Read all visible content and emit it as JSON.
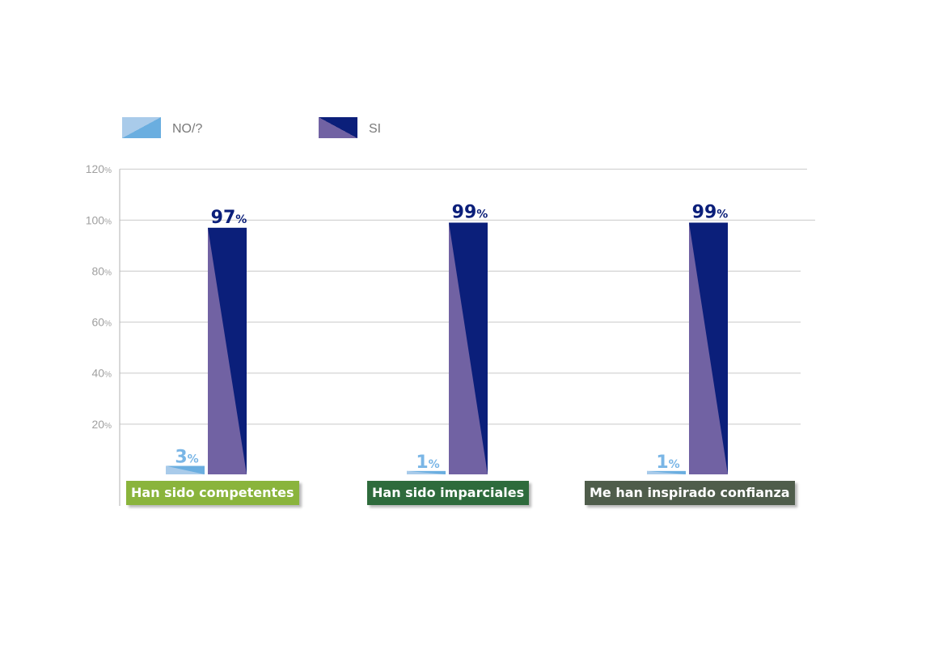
{
  "chart_data": {
    "type": "bar",
    "categories": [
      "Han sido competentes",
      "Han sido imparciales",
      "Me han inspirado confianza"
    ],
    "series": [
      {
        "name": "NO/?",
        "values": [
          3,
          1,
          1
        ],
        "labels": [
          "3",
          "1",
          "1"
        ]
      },
      {
        "name": "SI",
        "values": [
          97,
          99,
          99
        ],
        "labels": [
          "97",
          "99",
          "99"
        ]
      }
    ],
    "value_unit": "%",
    "yticks": [
      "20",
      "40",
      "60",
      "80",
      "100",
      "120"
    ],
    "ytick_unit": "%",
    "ylim": [
      0,
      120
    ],
    "grid": true,
    "legend_position": "top-left"
  },
  "colors": {
    "no_light": "#a9cbea",
    "no_dark": "#6aaee0",
    "no_label": "#7ab6e6",
    "si_dark": "#0b1f7a",
    "si_light": "#7162a3",
    "si_label": "#0b1f7a",
    "category_bg": [
      "#8ab43c",
      "#2e6b3c",
      "#4f5d4b"
    ]
  }
}
